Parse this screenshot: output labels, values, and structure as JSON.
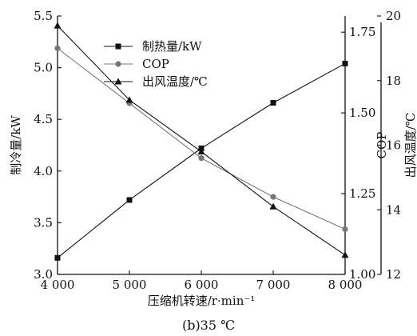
{
  "chart_data": {
    "type": "line",
    "x": [
      4000,
      5000,
      6000,
      7000,
      8000
    ],
    "x_tick_labels": [
      "4 000",
      "5 000",
      "6 000",
      "7 000",
      "8 000"
    ],
    "xlabel": "压缩机转速/r·min⁻¹",
    "xlim": [
      4000,
      8000
    ],
    "caption": "(b)35 ℃",
    "axes": {
      "left": {
        "label": "制冷量/kW",
        "lim": [
          3.0,
          5.5
        ],
        "ticks": [
          3.0,
          3.5,
          4.0,
          4.5,
          5.0,
          5.5
        ],
        "tick_labels": [
          "3.0",
          "3.5",
          "4.0",
          "4.5",
          "5.0",
          "5.5"
        ]
      },
      "right1": {
        "label": "COP",
        "lim": [
          1.0,
          1.8
        ],
        "ticks": [
          1.0,
          1.25,
          1.5,
          1.75
        ],
        "tick_labels": [
          "1.00",
          "1.25",
          "1.50",
          "1.75"
        ]
      },
      "right2": {
        "label": "出风温度/℃",
        "lim": [
          12,
          20
        ],
        "ticks": [
          12,
          14,
          16,
          18,
          20
        ],
        "tick_labels": [
          "12",
          "14",
          "16",
          "18",
          "20"
        ]
      }
    },
    "series": [
      {
        "name": "制热量/kW",
        "axis": "left",
        "marker": "square",
        "color": "#111111",
        "values": [
          3.16,
          3.72,
          4.22,
          4.66,
          5.04
        ]
      },
      {
        "name": "COP",
        "axis": "right1",
        "marker": "circle",
        "color": "#777777",
        "values": [
          1.7,
          1.53,
          1.36,
          1.24,
          1.14
        ]
      },
      {
        "name": "出风温度/℃",
        "axis": "right2",
        "marker": "triangle",
        "color": "#111111",
        "values": [
          19.7,
          17.4,
          15.8,
          14.1,
          12.6
        ]
      }
    ],
    "legend": {
      "position": "top-center"
    },
    "grid": false
  }
}
